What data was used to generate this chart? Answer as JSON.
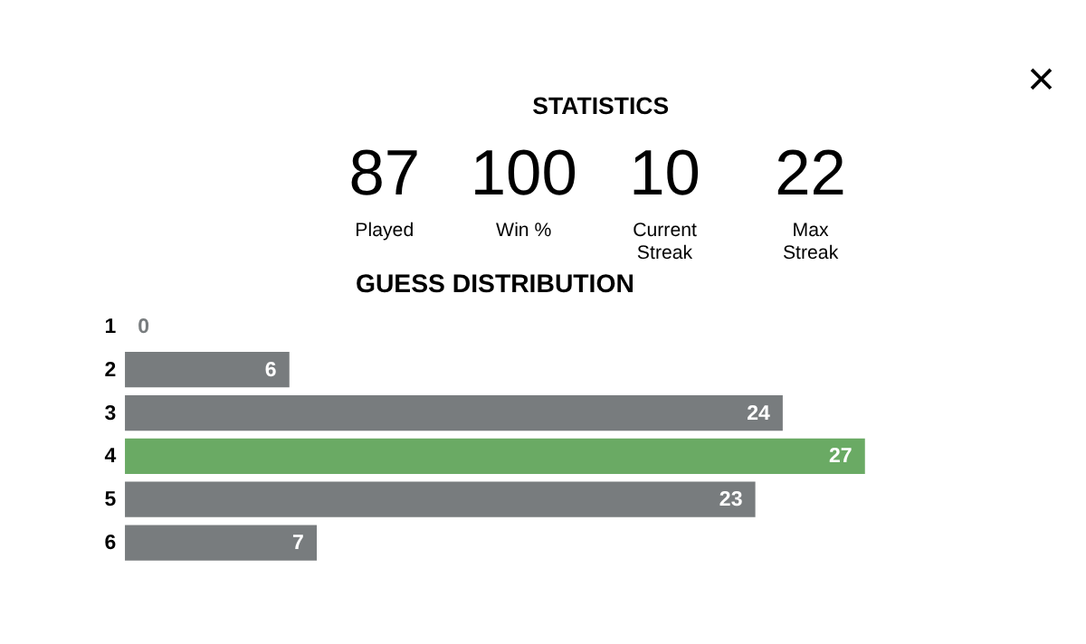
{
  "chart_data": [
    {
      "type": "other",
      "title": "STATISTICS",
      "annotations": [
        "87",
        "Played",
        "100",
        "Win %",
        "10",
        "Current\nStreak",
        "22",
        "Max\nStreak",
        "×"
      ]
    },
    {
      "type": "bar",
      "orientation": "horizontal",
      "title": "GUESS DISTRIBUTION",
      "categories": [
        "1",
        "2",
        "3",
        "4",
        "5",
        "6"
      ],
      "values": [
        0,
        6,
        24,
        27,
        23,
        7
      ],
      "colors": [
        "#787c7e",
        "#787c7e",
        "#787c7e",
        "#6aaa64",
        "#787c7e",
        "#787c7e"
      ],
      "data_labels": true,
      "tick_labels": "y"
    }
  ]
}
